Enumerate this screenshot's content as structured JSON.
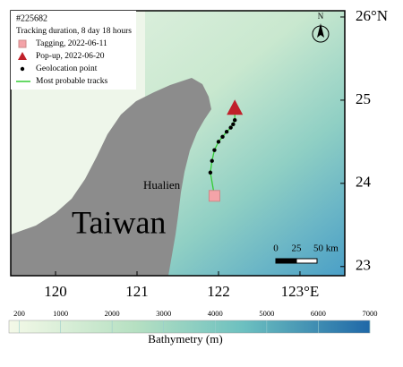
{
  "legend": {
    "id": "#225682",
    "duration": "Tracking duration, 8 day 18 hours",
    "items": [
      "Tagging, 2022-06-11",
      "Pop-up,   2022-06-20",
      "Geolocation point",
      "Most probable tracks"
    ]
  },
  "map": {
    "xlim": [
      119.45,
      123.55
    ],
    "ylim": [
      22.89,
      26.075
    ],
    "xticks": [
      120,
      121,
      122,
      {
        "value": 123,
        "label": "123°E"
      }
    ],
    "yticks": [
      23,
      24,
      25,
      {
        "value": 26,
        "label": "26°N"
      }
    ],
    "city": "Hualien",
    "island": "Taiwan",
    "north": "N",
    "tagging": {
      "lon": 121.95,
      "lat": 23.85
    },
    "popup": {
      "lon": 122.2,
      "lat": 24.9
    },
    "track": {
      "lon": [
        121.9,
        121.92,
        121.95,
        122.0,
        122.05,
        122.1,
        122.15,
        122.18,
        122.2
      ],
      "lat": [
        24.13,
        24.27,
        24.4,
        24.5,
        24.56,
        24.62,
        24.67,
        24.71,
        24.76
      ]
    },
    "scale_bar": [
      0,
      25,
      {
        "value": 50,
        "label": "50 km"
      }
    ]
  },
  "colorbar": {
    "title": "Bathymetry (m)",
    "lim": [
      0,
      7000
    ],
    "ticks": [
      200,
      1000,
      2000,
      3000,
      4000,
      5000,
      6000,
      7000
    ]
  }
}
